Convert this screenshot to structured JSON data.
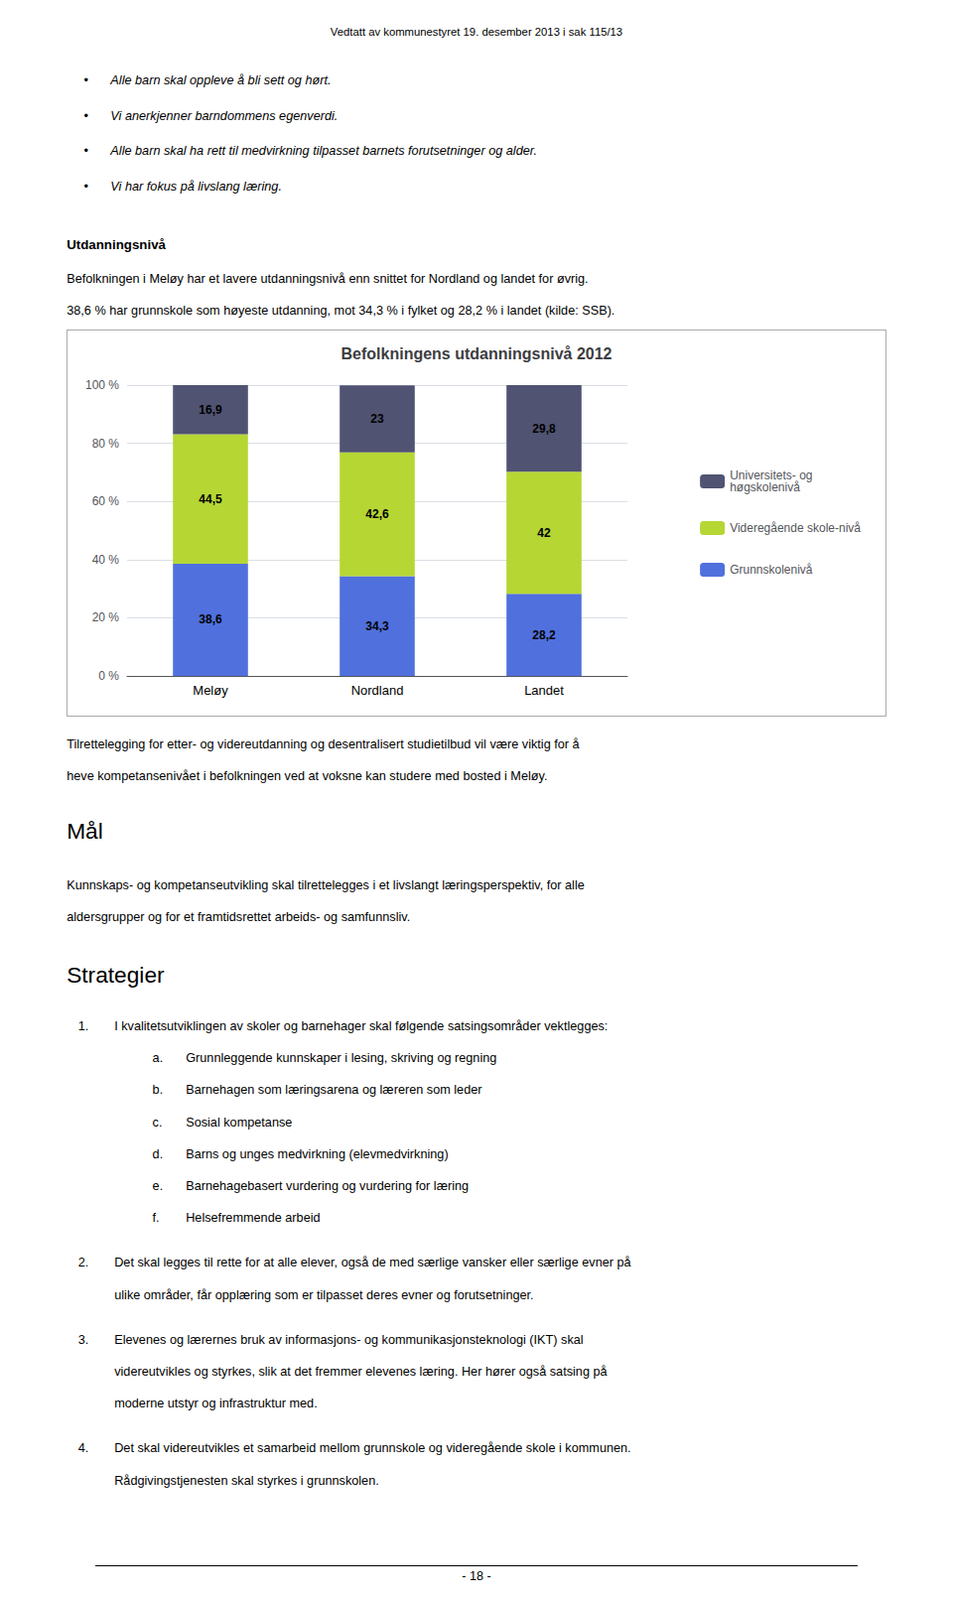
{
  "chart_data": {
    "type": "bar",
    "stacked": true,
    "title": "Befolkningens utdanningsnivå 2012",
    "categories": [
      "Meløy",
      "Nordland",
      "Landet"
    ],
    "series": [
      {
        "name": "Grunnskolenivå",
        "values": [
          38.6,
          34.3,
          28.2
        ],
        "value_labels": [
          "38,6",
          "34,3",
          "28,2"
        ]
      },
      {
        "name": "Videregående skole-nivå",
        "values": [
          44.5,
          42.6,
          42.0
        ],
        "value_labels": [
          "44,5",
          "42,6",
          "42"
        ]
      },
      {
        "name": "Universitets- og\nhøgskolenivå",
        "values": [
          16.9,
          23.0,
          29.8
        ],
        "value_labels": [
          "16,9",
          "23",
          "29,8"
        ]
      }
    ],
    "ylim": [
      0,
      100
    ],
    "yticks": [
      {
        "value": 0,
        "label": "0 %"
      },
      {
        "value": 20,
        "label": "20 %"
      },
      {
        "value": 40,
        "label": "40 %"
      },
      {
        "value": 60,
        "label": "60 %"
      },
      {
        "value": 80,
        "label": "80 %"
      },
      {
        "value": 100,
        "label": "100 %"
      }
    ],
    "grid": true,
    "legend": "right",
    "data_labels": true,
    "annotations": [
      "Vedtatt av kommunestyret 19. desember 2013 i sak 115/13",
      "•",
      "Alle barn skal oppleve å bli sett og hørt.",
      "•",
      "Vi anerkjenner barndommens egenverdi.",
      "•",
      "Alle barn skal ha rett til medvirkning tilpasset barnets forutsetninger og alder.",
      "•",
      "Vi har fokus på livslang læring.",
      "Utdanningsnivå",
      "Befolkningen i Meløy har et lavere utdanningsnivå enn snittet for Nordland og landet for øvrig.",
      "38,6 % har grunnskole som høyeste utdanning, mot 34,3 % i fylket og 28,2 % i landet (kilde: SSB).",
      "Tilrettelegging for etter- og videreutdanning og desentralisert studietilbud vil være viktig for å",
      "heve kompetansenivået i befolkningen ved at voksne kan studere med bosted i Meløy.",
      "Mål",
      "Kunnskaps- og kompetanseutvikling skal tilrettelegges i et livslangt læringsperspektiv, for alle",
      "aldersgrupper og for et framtidsrettet arbeids- og samfunnsliv.",
      "Strategier",
      "1.",
      "I kvalitetsutviklingen av skoler og barnehager skal følgende satsingsområder vektlegges:",
      "a.",
      "Grunnleggende kunnskaper i lesing, skriving og regning",
      "b.",
      "Barnehagen som læringsarena og læreren som leder",
      "c.",
      "Sosial kompetanse",
      "d.",
      "Barns og unges medvirkning (elevmedvirkning)",
      "e.",
      "Barnehagebasert vurdering og vurdering for læring",
      "f.",
      "Helsefremmende arbeid",
      "2.",
      "Det skal legges til rette for at alle elever, også de med særlige vansker eller særlige evner på",
      "ulike områder, får opplæring som er tilpasset deres evner og forutsetninger.",
      "3.",
      "Elevenes og lærernes bruk av informasjons- og kommunikasjonsteknologi (IKT) skal",
      "videreutvikles og styrkes, slik at det fremmer elevenes læring. Her hører også satsing på",
      "moderne utstyr og infrastruktur med.",
      "4.",
      "Det skal videreutvikles et samarbeid mellom grunnskole og videregående skole i kommunen.",
      "Rådgivingstjenesten skal styrkes i grunnskolen.",
      "- 18 -"
    ]
  }
}
